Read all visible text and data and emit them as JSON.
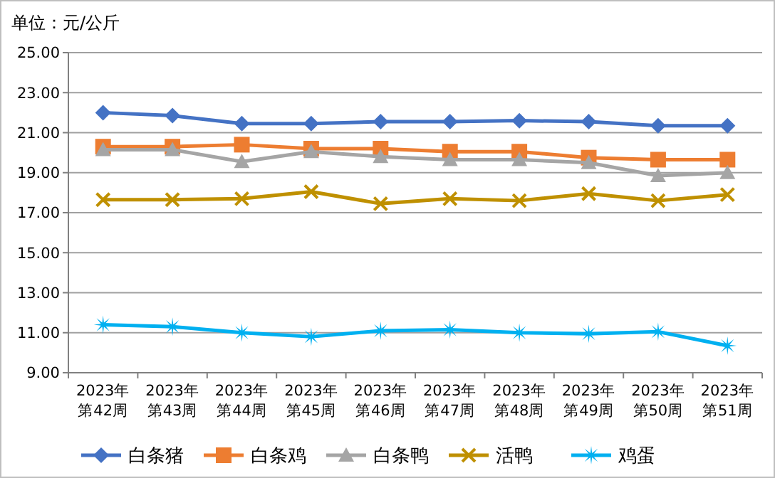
{
  "chart_data": {
    "type": "line",
    "ylabel": "单位：元/公斤",
    "categories": [
      "2023年第42周",
      "2023年第43周",
      "2023年第44周",
      "2023年第45周",
      "2023年第46周",
      "2023年第47周",
      "2023年第48周",
      "2023年第49周",
      "2023年第50周",
      "2023年第51周"
    ],
    "series": [
      {
        "name": "白条猪",
        "color": "#4472c4",
        "marker": "diamond",
        "values": [
          22.0,
          21.85,
          21.45,
          21.45,
          21.55,
          21.55,
          21.6,
          21.55,
          21.35,
          21.35
        ]
      },
      {
        "name": "白条鸡",
        "color": "#ed7d31",
        "marker": "square",
        "values": [
          20.3,
          20.3,
          20.4,
          20.2,
          20.2,
          20.05,
          20.05,
          19.75,
          19.65,
          19.65
        ]
      },
      {
        "name": "白条鸭",
        "color": "#a5a5a5",
        "marker": "triangle",
        "values": [
          20.15,
          20.15,
          19.55,
          20.05,
          19.8,
          19.65,
          19.65,
          19.5,
          18.85,
          19.0
        ]
      },
      {
        "name": "活鸭",
        "color": "#bf9000",
        "marker": "cross",
        "values": [
          17.65,
          17.65,
          17.7,
          18.05,
          17.45,
          17.7,
          17.6,
          17.95,
          17.6,
          17.9
        ]
      },
      {
        "name": "鸡蛋",
        "color": "#00b0f0",
        "marker": "star",
        "values": [
          11.4,
          11.3,
          11.0,
          10.8,
          11.1,
          11.15,
          11.0,
          10.95,
          11.05,
          10.35
        ]
      }
    ],
    "ylim": [
      9,
      25
    ],
    "yticks": [
      {
        "value": 9,
        "label": "9.00"
      },
      {
        "value": 11,
        "label": "11.00"
      },
      {
        "value": 13,
        "label": "13.00"
      },
      {
        "value": 15,
        "label": "15.00"
      },
      {
        "value": 17,
        "label": "17.00"
      },
      {
        "value": 19,
        "label": "19.00"
      },
      {
        "value": 21,
        "label": "21.00"
      },
      {
        "value": 23,
        "label": "23.00"
      },
      {
        "value": 25,
        "label": "25.00"
      }
    ],
    "grid": "y",
    "legend": "bottom",
    "line_style": "solid"
  }
}
